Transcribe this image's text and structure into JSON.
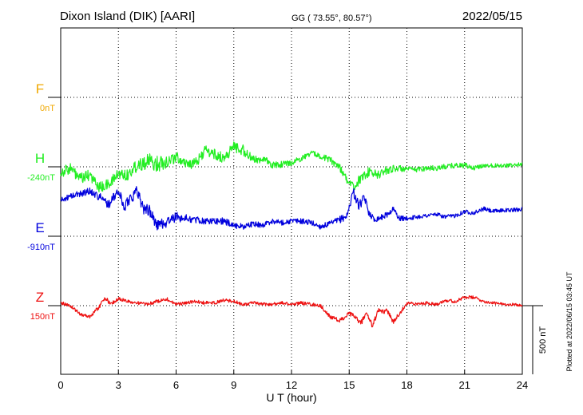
{
  "header": {
    "station": "Dixon Island (DIK)  [AARI]",
    "coords": "GG ( 73.55°,  80.57°)",
    "date": "2022/05/15"
  },
  "side_note": "Plotted at 2022/06/15 03:45 UT",
  "scale_label": "500 nT",
  "chart_data": {
    "type": "line",
    "xlabel": "U T (hour)",
    "xlim": [
      0,
      24
    ],
    "x_ticks": [
      "0",
      "3",
      "6",
      "9",
      "12",
      "15",
      "18",
      "21",
      "24"
    ],
    "scale_bar_nT": 500,
    "grid": "dotted",
    "series": [
      {
        "name": "F",
        "baseline_label": "0nT",
        "color": "#f0a800",
        "x": [],
        "y": []
      },
      {
        "name": "H",
        "baseline_label": "-240nT",
        "color": "#22ee22",
        "x": [
          0,
          0.5,
          1,
          1.5,
          2,
          2.5,
          3,
          3.5,
          4,
          4.5,
          5,
          5.5,
          6,
          6.5,
          7,
          7.5,
          8,
          8.5,
          9,
          9.5,
          10,
          10.5,
          11,
          11.5,
          12,
          12.5,
          13,
          13.5,
          14,
          14.5,
          15,
          15.25,
          15.5,
          16,
          16.5,
          17,
          17.5,
          18,
          18.5,
          19,
          19.5,
          20,
          20.5,
          21,
          21.5,
          22,
          22.5,
          23,
          23.5,
          24
        ],
        "y": [
          -40,
          -10,
          -90,
          -60,
          -150,
          -130,
          -50,
          -60,
          20,
          40,
          20,
          40,
          70,
          30,
          20,
          120,
          90,
          60,
          150,
          120,
          50,
          60,
          10,
          20,
          30,
          60,
          100,
          80,
          50,
          0,
          -120,
          -150,
          -100,
          -40,
          -60,
          -20,
          -10,
          -20,
          -20,
          -10,
          -10,
          0,
          10,
          10,
          -10,
          10,
          10,
          10,
          10,
          20
        ],
        "noise": [
          40,
          40,
          40,
          40,
          40,
          40,
          40,
          45,
          50,
          60,
          60,
          50,
          40,
          40,
          40,
          40,
          40,
          40,
          40,
          40,
          30,
          30,
          25,
          25,
          20,
          20,
          20,
          20,
          25,
          30,
          30,
          30,
          35,
          35,
          35,
          30,
          25,
          20,
          20,
          20,
          20,
          20,
          20,
          20,
          15,
          15,
          15,
          15,
          15,
          15
        ]
      },
      {
        "name": "E",
        "baseline_label": "-910nT",
        "color": "#0000dd",
        "x": [
          0,
          0.5,
          1,
          1.5,
          2,
          2.5,
          3,
          3.3,
          3.6,
          4,
          4.3,
          4.6,
          5,
          5.5,
          6,
          6.5,
          7,
          7.5,
          8,
          8.5,
          9,
          9.5,
          10,
          10.5,
          11,
          11.5,
          12,
          12.5,
          13,
          13.5,
          14,
          14.5,
          14.9,
          15.2,
          15.5,
          15.8,
          16,
          16.3,
          16.7,
          17,
          17.3,
          17.6,
          18,
          18.5,
          19,
          19.5,
          20,
          20.5,
          21,
          21.5,
          22,
          22.5,
          23,
          23.5,
          24
        ],
        "y": [
          260,
          290,
          310,
          330,
          290,
          230,
          330,
          210,
          280,
          330,
          200,
          190,
          80,
          100,
          140,
          130,
          120,
          110,
          110,
          110,
          80,
          70,
          90,
          80,
          110,
          100,
          110,
          110,
          100,
          70,
          90,
          120,
          150,
          330,
          220,
          280,
          180,
          120,
          140,
          160,
          200,
          130,
          130,
          140,
          150,
          160,
          140,
          150,
          180,
          170,
          200,
          180,
          190,
          190,
          200
        ],
        "noise": [
          20,
          20,
          25,
          25,
          30,
          30,
          40,
          40,
          45,
          45,
          40,
          40,
          40,
          40,
          35,
          30,
          25,
          25,
          25,
          25,
          25,
          20,
          20,
          20,
          20,
          20,
          20,
          20,
          20,
          20,
          20,
          25,
          30,
          35,
          35,
          30,
          25,
          20,
          20,
          20,
          20,
          20,
          15,
          15,
          15,
          15,
          15,
          15,
          15,
          15,
          15,
          15,
          15,
          15,
          15
        ]
      },
      {
        "name": "Z",
        "baseline_label": "150nT",
        "color": "#ee1111",
        "x": [
          0,
          0.5,
          1,
          1.5,
          2,
          2.3,
          2.6,
          3,
          3.5,
          4,
          4.5,
          5,
          5.5,
          6,
          6.5,
          7,
          7.5,
          8,
          8.5,
          9,
          9.5,
          10,
          10.5,
          11,
          11.5,
          12,
          12.5,
          13,
          13.5,
          14,
          14.5,
          15,
          15.3,
          15.6,
          15.9,
          16.2,
          16.5,
          17,
          17.3,
          17.6,
          18,
          18.5,
          19,
          19.5,
          20,
          20.5,
          21,
          21.5,
          22,
          22.5,
          23,
          23.5,
          24
        ],
        "y": [
          20,
          0,
          -60,
          -80,
          -10,
          60,
          10,
          50,
          30,
          20,
          10,
          30,
          50,
          10,
          20,
          30,
          20,
          20,
          40,
          30,
          10,
          20,
          10,
          10,
          20,
          10,
          20,
          10,
          0,
          -80,
          -110,
          -60,
          -80,
          -130,
          -50,
          -150,
          -40,
          -40,
          -120,
          -60,
          20,
          10,
          20,
          10,
          40,
          30,
          60,
          60,
          30,
          20,
          10,
          10,
          0
        ],
        "noise": [
          12,
          12,
          12,
          12,
          15,
          15,
          15,
          15,
          12,
          12,
          12,
          12,
          12,
          12,
          12,
          12,
          12,
          12,
          12,
          12,
          12,
          12,
          12,
          12,
          12,
          12,
          12,
          12,
          12,
          15,
          15,
          18,
          18,
          20,
          20,
          20,
          20,
          18,
          18,
          15,
          12,
          12,
          12,
          12,
          12,
          12,
          12,
          12,
          10,
          10,
          10,
          10,
          10
        ]
      }
    ]
  }
}
